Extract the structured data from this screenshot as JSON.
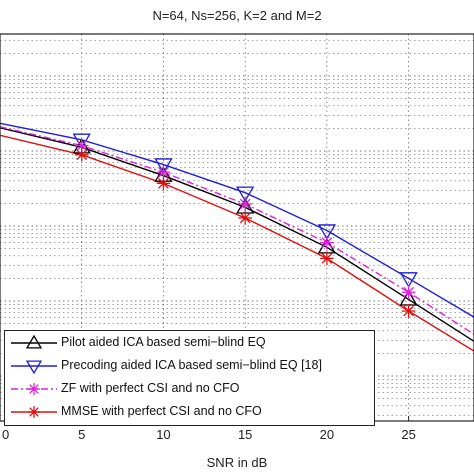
{
  "chart_data": {
    "type": "line",
    "title": "N=64, Ns=256, K=2  and M=2",
    "xlabel": "SNR in dB",
    "ylabel": "",
    "xlim": [
      0,
      29
    ],
    "ylog": true,
    "grid": true,
    "legend_position": "bottom-left",
    "xticks": [
      0,
      5,
      10,
      15,
      20,
      25
    ],
    "xtick_labels": [
      "0",
      "5",
      "10",
      "15",
      "20",
      "25"
    ],
    "series": [
      {
        "name": "Pilot aided ICA based semi−blind EQ",
        "color": "#000000",
        "marker": "triangle-up",
        "dash": "solid",
        "x": [
          0,
          5,
          10,
          15,
          20,
          25,
          29
        ],
        "y": [
          0.0204,
          0.0112,
          0.0047,
          0.00177,
          0.00052,
          0.000105,
          2.9e-05
        ]
      },
      {
        "name": "Precoding aided ICA based semi−blind EQ [18]",
        "color": "#1f1fd9",
        "marker": "triangle-down",
        "dash": "solid",
        "x": [
          0,
          5,
          10,
          15,
          20,
          25,
          29
        ],
        "y": [
          0.0234,
          0.0141,
          0.0066,
          0.00278,
          0.00087,
          0.0002,
          6.1e-05
        ]
      },
      {
        "name": "ZF with perfect CSI and no CFO",
        "color": "#e020e0",
        "marker": "star",
        "dash": "dashdot",
        "x": [
          0,
          5,
          10,
          15,
          20,
          25,
          29
        ],
        "y": [
          0.021,
          0.0118,
          0.0052,
          0.00196,
          0.0006,
          0.000131,
          3.6e-05
        ]
      },
      {
        "name": "MMSE with perfect CSI and no CFO",
        "color": "#e01010",
        "marker": "star",
        "dash": "solid",
        "x": [
          0,
          5,
          10,
          15,
          20,
          25,
          29
        ],
        "y": [
          0.0162,
          0.0089,
          0.0037,
          0.00128,
          0.00037,
          7.35e-05,
          2.15e-05
        ]
      }
    ]
  }
}
